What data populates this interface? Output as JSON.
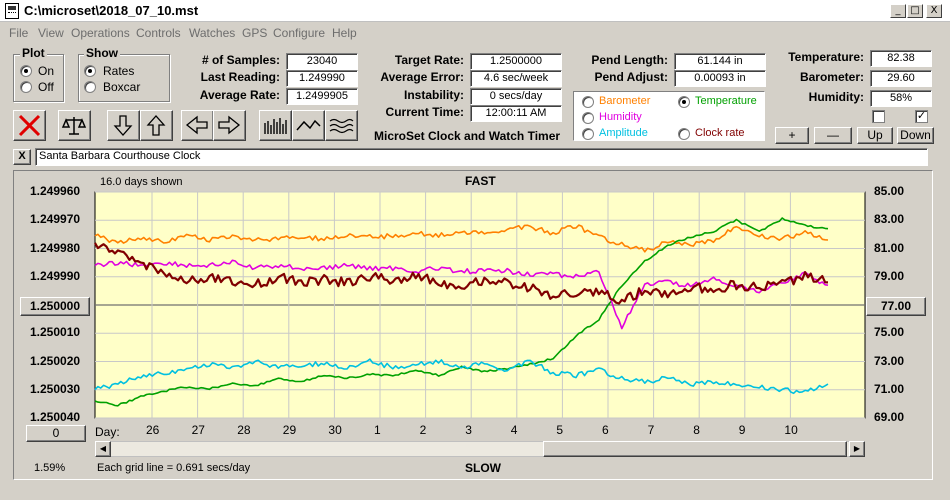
{
  "window": {
    "title": "C:\\microset\\2018_07_10.mst",
    "minimize": "_",
    "maximize": "□",
    "close": "X"
  },
  "menu": [
    "File",
    "View",
    "Operations",
    "Controls",
    "Watches",
    "GPS",
    "Configure",
    "Help"
  ],
  "plot_group": {
    "title": "Plot",
    "options": [
      "On",
      "Off"
    ],
    "selected": "On"
  },
  "show_group": {
    "title": "Show",
    "options": [
      "Rates",
      "Boxcar"
    ],
    "selected": "Rates"
  },
  "stats": {
    "samples_label": "# of Samples:",
    "samples": "23040",
    "last_reading_label": "Last Reading:",
    "last_reading": "1.249990",
    "average_rate_label": "Average Rate:",
    "average_rate": "1.2499905",
    "target_rate_label": "Target Rate:",
    "target_rate": "1.2500000",
    "average_error_label": "Average Error:",
    "average_error": "4.6 sec/week",
    "instability_label": "Instability:",
    "instability": "0 secs/day",
    "current_time_label": "Current Time:",
    "current_time": "12:00:11 AM",
    "pend_length_label": "Pend Length:",
    "pend_length": "61.144 in",
    "pend_adjust_label": "Pend Adjust:",
    "pend_adjust": "0.00093 in",
    "temperature_label": "Temperature:",
    "temperature": "82.38",
    "barometer_label": "Barometer:",
    "barometer": "29.60",
    "humidity_label": "Humidity:",
    "humidity": "58%"
  },
  "app_caption": "MicroSet Clock and Watch Timer",
  "sensor_select": {
    "options": [
      {
        "label": "Barometer",
        "color": "#ff8000"
      },
      {
        "label": "Temperature",
        "color": "#00a000"
      },
      {
        "label": "Humidity",
        "color": "#e000e0"
      },
      {
        "label": "Amplitude",
        "color": "#00c0e0"
      },
      {
        "label": "Clock rate",
        "color": "#800000"
      }
    ],
    "selected": "Temperature"
  },
  "adjust_buttons": [
    "+",
    "—",
    "Up",
    "Down"
  ],
  "checkboxes": [
    {
      "checked": false,
      "mark": ""
    },
    {
      "checked": true,
      "mark": "✓"
    }
  ],
  "clock": {
    "close_label": "X",
    "name": "Santa Barbara Courthouse Clock"
  },
  "graph": {
    "days_shown": "16.0 days shown",
    "top_label": "FAST",
    "bottom_label": "SLOW",
    "grid_note": "Each grid line = 0.691 secs/day",
    "left_button": "1.250000",
    "right_button": "77.00",
    "zero_button": "0",
    "percent": "1.59%",
    "day_label": "Day:",
    "left_axis": [
      "1.249960",
      "1.249970",
      "1.249980",
      "1.249990",
      "1.250000",
      "1.250010",
      "1.250020",
      "1.250030",
      "1.250040"
    ],
    "right_axis": [
      "85.00",
      "83.00",
      "81.00",
      "79.00",
      "77.00",
      "75.00",
      "73.00",
      "71.00",
      "69.00"
    ]
  },
  "chart_data": {
    "type": "line",
    "x_tick_labels": [
      "26",
      "27",
      "28",
      "29",
      "30",
      "1",
      "2",
      "3",
      "4",
      "5",
      "6",
      "7",
      "8",
      "9",
      "10"
    ],
    "x": [
      0,
      0.5,
      1,
      1.5,
      2,
      2.5,
      3,
      3.5,
      4,
      4.5,
      5,
      5.5,
      6,
      6.5,
      7,
      7.5,
      8,
      8.5,
      9,
      9.5,
      10,
      10.5,
      11,
      11.5,
      12,
      12.5,
      13,
      13.5,
      14,
      14.5,
      15,
      15.5,
      16
    ],
    "left_ylim": [
      1.24996,
      1.25004
    ],
    "right_ylim": [
      69,
      85
    ],
    "grid": true,
    "series": [
      {
        "name": "Barometer",
        "color": "#ff8000",
        "axis": "right",
        "values": [
          81.9,
          81.4,
          81.8,
          81.5,
          81.9,
          81.6,
          81.9,
          81.6,
          81.7,
          81.9,
          81.6,
          82.0,
          81.8,
          81.9,
          82.1,
          81.9,
          82.2,
          82.0,
          82.4,
          82.5,
          82.1,
          82.6,
          81.8,
          81.3,
          80.9,
          81.4,
          81.3,
          81.6,
          82.6,
          81.9,
          81.7,
          82.1,
          81.6
        ]
      },
      {
        "name": "Temperature",
        "color": "#00a000",
        "axis": "right",
        "values": [
          70.2,
          69.9,
          70.5,
          70.9,
          71.2,
          71.1,
          71.4,
          71.3,
          71.8,
          71.6,
          72.0,
          71.8,
          72.1,
          72.0,
          72.4,
          72.0,
          72.6,
          72.3,
          72.5,
          72.8,
          73.2,
          74.8,
          76.0,
          78.4,
          80.1,
          81.2,
          81.8,
          82.2,
          83.0,
          82.2,
          83.1,
          82.6,
          82.4
        ]
      },
      {
        "name": "Humidity",
        "color": "#e000e0",
        "axis": "left",
        "values": [
          1.249986,
          1.249985,
          1.249986,
          1.249985,
          1.249986,
          1.249986,
          1.249985,
          1.249987,
          1.249986,
          1.249987,
          1.249987,
          1.249986,
          1.249987,
          1.249987,
          1.249988,
          1.249987,
          1.249988,
          1.249988,
          1.249988,
          1.249989,
          1.249989,
          1.24999,
          1.249988,
          1.250008,
          1.249993,
          1.249992,
          1.249993,
          1.249991,
          1.249993,
          1.249995,
          1.249992,
          1.249989,
          1.249993
        ]
      },
      {
        "name": "Amplitude",
        "color": "#00c0e0",
        "axis": "left",
        "values": [
          1.25003,
          1.250028,
          1.250025,
          1.250024,
          1.250023,
          1.250021,
          1.250022,
          1.25002,
          1.250022,
          1.250021,
          1.250021,
          1.250022,
          1.25002,
          1.250022,
          1.250021,
          1.25002,
          1.250022,
          1.250021,
          1.250023,
          1.25002,
          1.250024,
          1.250025,
          1.250023,
          1.250026,
          1.250027,
          1.250026,
          1.250028,
          1.250027,
          1.250028,
          1.250029,
          1.25003,
          1.250031,
          1.250028
        ]
      },
      {
        "name": "Clock rate",
        "color": "#800000",
        "axis": "left",
        "values": [
          1.249978,
          1.249982,
          1.249985,
          1.249988,
          1.249992,
          1.24999,
          1.249992,
          1.249993,
          1.24999,
          1.249992,
          1.249991,
          1.249992,
          1.24999,
          1.249991,
          1.24999,
          1.249992,
          1.249993,
          1.249991,
          1.249992,
          1.249994,
          1.249997,
          1.249996,
          1.249996,
          1.249998,
          1.249995,
          1.249996,
          1.249994,
          1.249994,
          1.249993,
          1.249994,
          1.249992,
          1.24999,
          1.249992
        ]
      }
    ]
  }
}
